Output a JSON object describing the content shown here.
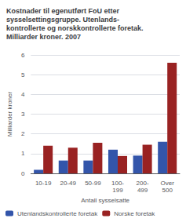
{
  "chart_data": {
    "type": "bar",
    "title": "Kostnader til egenutført FoU etter\nsysselsettingsgruppe. Utenlands-\nkontrollerte og norskkontrollerte foretak.\nMilliarder kroner. 2007",
    "ylabel": "Milliarder kroner",
    "xlabel": "Antall sysselsatte",
    "categories": [
      "10-19",
      "20-49",
      "50-99",
      "100-\n199",
      "200-\n499",
      "Over\n500"
    ],
    "series": [
      {
        "name": "Utenlandskontrollerte foretak",
        "color": "#3355aa",
        "values": [
          0.18,
          0.65,
          0.65,
          1.2,
          0.9,
          1.6
        ]
      },
      {
        "name": "Norske foretak",
        "color": "#992222",
        "values": [
          1.4,
          1.3,
          1.55,
          0.88,
          1.45,
          5.6
        ]
      }
    ],
    "ylim": [
      0,
      6
    ],
    "yticks": [
      0,
      1,
      2,
      3,
      4,
      5,
      6
    ],
    "grid": true,
    "legend": "bottom"
  }
}
